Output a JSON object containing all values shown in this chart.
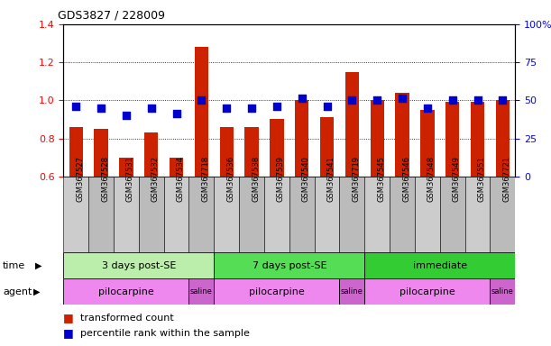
{
  "title": "GDS3827 / 228009",
  "samples": [
    "GSM367527",
    "GSM367528",
    "GSM367531",
    "GSM367532",
    "GSM367534",
    "GSM367718",
    "GSM367536",
    "GSM367538",
    "GSM367539",
    "GSM367540",
    "GSM367541",
    "GSM367719",
    "GSM367545",
    "GSM367546",
    "GSM367548",
    "GSM367549",
    "GSM367551",
    "GSM367721"
  ],
  "red_values": [
    0.86,
    0.85,
    0.7,
    0.83,
    0.7,
    1.28,
    0.86,
    0.86,
    0.9,
    1.0,
    0.91,
    1.15,
    1.0,
    1.04,
    0.95,
    0.99,
    0.99,
    1.0
  ],
  "blue_values": [
    0.97,
    0.96,
    0.92,
    0.96,
    0.93,
    1.0,
    0.96,
    0.96,
    0.97,
    1.01,
    0.97,
    1.0,
    1.0,
    1.01,
    0.96,
    1.0,
    1.0,
    1.0
  ],
  "ylim": [
    0.6,
    1.4
  ],
  "y2lim": [
    0,
    100
  ],
  "yticks": [
    0.6,
    0.8,
    1.0,
    1.2,
    1.4
  ],
  "y2ticks": [
    0,
    25,
    50,
    75,
    100
  ],
  "y2labels": [
    "0",
    "25",
    "50",
    "75",
    "100%"
  ],
  "bar_color": "#cc2200",
  "dot_color": "#0000cc",
  "bar_width": 0.55,
  "dot_size": 40,
  "bg_color": "#ffffff",
  "label_bg_even": "#cccccc",
  "label_bg_odd": "#aaaaaa",
  "time_groups": [
    {
      "label": "3 days post-SE",
      "start": 0,
      "end": 5,
      "color": "#bbeeaa"
    },
    {
      "label": "7 days post-SE",
      "start": 6,
      "end": 11,
      "color": "#55dd55"
    },
    {
      "label": "immediate",
      "start": 12,
      "end": 17,
      "color": "#33cc33"
    }
  ],
  "agent_groups": [
    {
      "label": "pilocarpine",
      "start": 0,
      "end": 4,
      "color": "#ee88ee"
    },
    {
      "label": "saline",
      "start": 5,
      "end": 5,
      "color": "#cc66cc"
    },
    {
      "label": "pilocarpine",
      "start": 6,
      "end": 10,
      "color": "#ee88ee"
    },
    {
      "label": "saline",
      "start": 11,
      "end": 11,
      "color": "#cc66cc"
    },
    {
      "label": "pilocarpine",
      "start": 12,
      "end": 16,
      "color": "#ee88ee"
    },
    {
      "label": "saline",
      "start": 17,
      "end": 17,
      "color": "#cc66cc"
    }
  ],
  "legend_red": "transformed count",
  "legend_blue": "percentile rank within the sample"
}
